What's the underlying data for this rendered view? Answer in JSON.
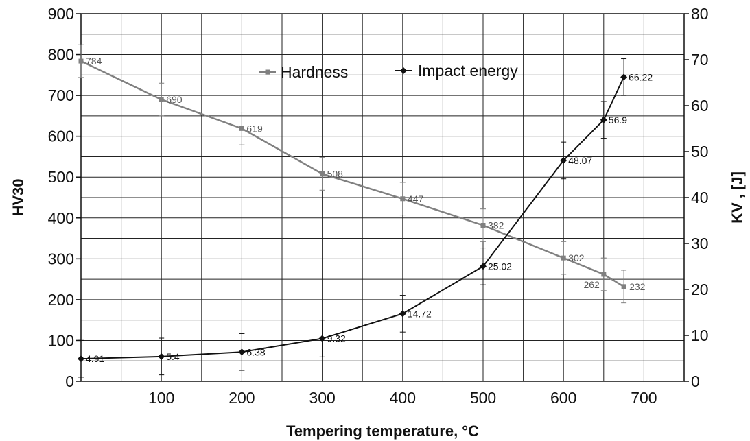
{
  "chart_data": {
    "type": "line",
    "title": "",
    "xlabel": "Tempering temperature, °C",
    "ylabel_left": "HV30",
    "ylabel_right": "KV , [J]",
    "xlim": [
      0,
      750
    ],
    "ylim_left": [
      0,
      900
    ],
    "ylim_right": [
      0,
      80
    ],
    "x_ticks": [
      "100",
      "200",
      "300",
      "400",
      "500",
      "600",
      "700"
    ],
    "y_left_ticks": [
      "0",
      "100",
      "200",
      "300",
      "400",
      "500",
      "600",
      "700",
      "800",
      "900"
    ],
    "y_right_ticks": [
      "0",
      "10",
      "20",
      "30",
      "40",
      "50",
      "60",
      "70",
      "80"
    ],
    "grid": true,
    "legend_position": "top-center",
    "series": [
      {
        "name": "Hardness",
        "axis": "left",
        "color": "#808080",
        "marker": "square",
        "x": [
          0,
          100,
          200,
          300,
          400,
          500,
          600,
          650,
          675
        ],
        "values": [
          784,
          690,
          619,
          508,
          447,
          382,
          302,
          262,
          232
        ],
        "labels": [
          "784",
          "690",
          "619",
          "508",
          "447",
          "382",
          "302",
          "262",
          "232"
        ],
        "error": [
          40,
          40,
          40,
          40,
          40,
          40,
          40,
          40,
          40
        ]
      },
      {
        "name": "Impact energy",
        "axis": "right",
        "color": "#111111",
        "marker": "diamond",
        "x": [
          0,
          100,
          200,
          300,
          400,
          500,
          600,
          650,
          675
        ],
        "values": [
          4.91,
          5.4,
          6.38,
          9.32,
          14.72,
          25.02,
          48.07,
          56.9,
          66.22
        ],
        "labels": [
          "4.91",
          "5.4",
          "6.38",
          "9.32",
          "14.72",
          "25.02",
          "48.07",
          "56.9",
          "66.22"
        ],
        "error": [
          4,
          4,
          4,
          4,
          4,
          4,
          4,
          4,
          4
        ]
      }
    ]
  }
}
